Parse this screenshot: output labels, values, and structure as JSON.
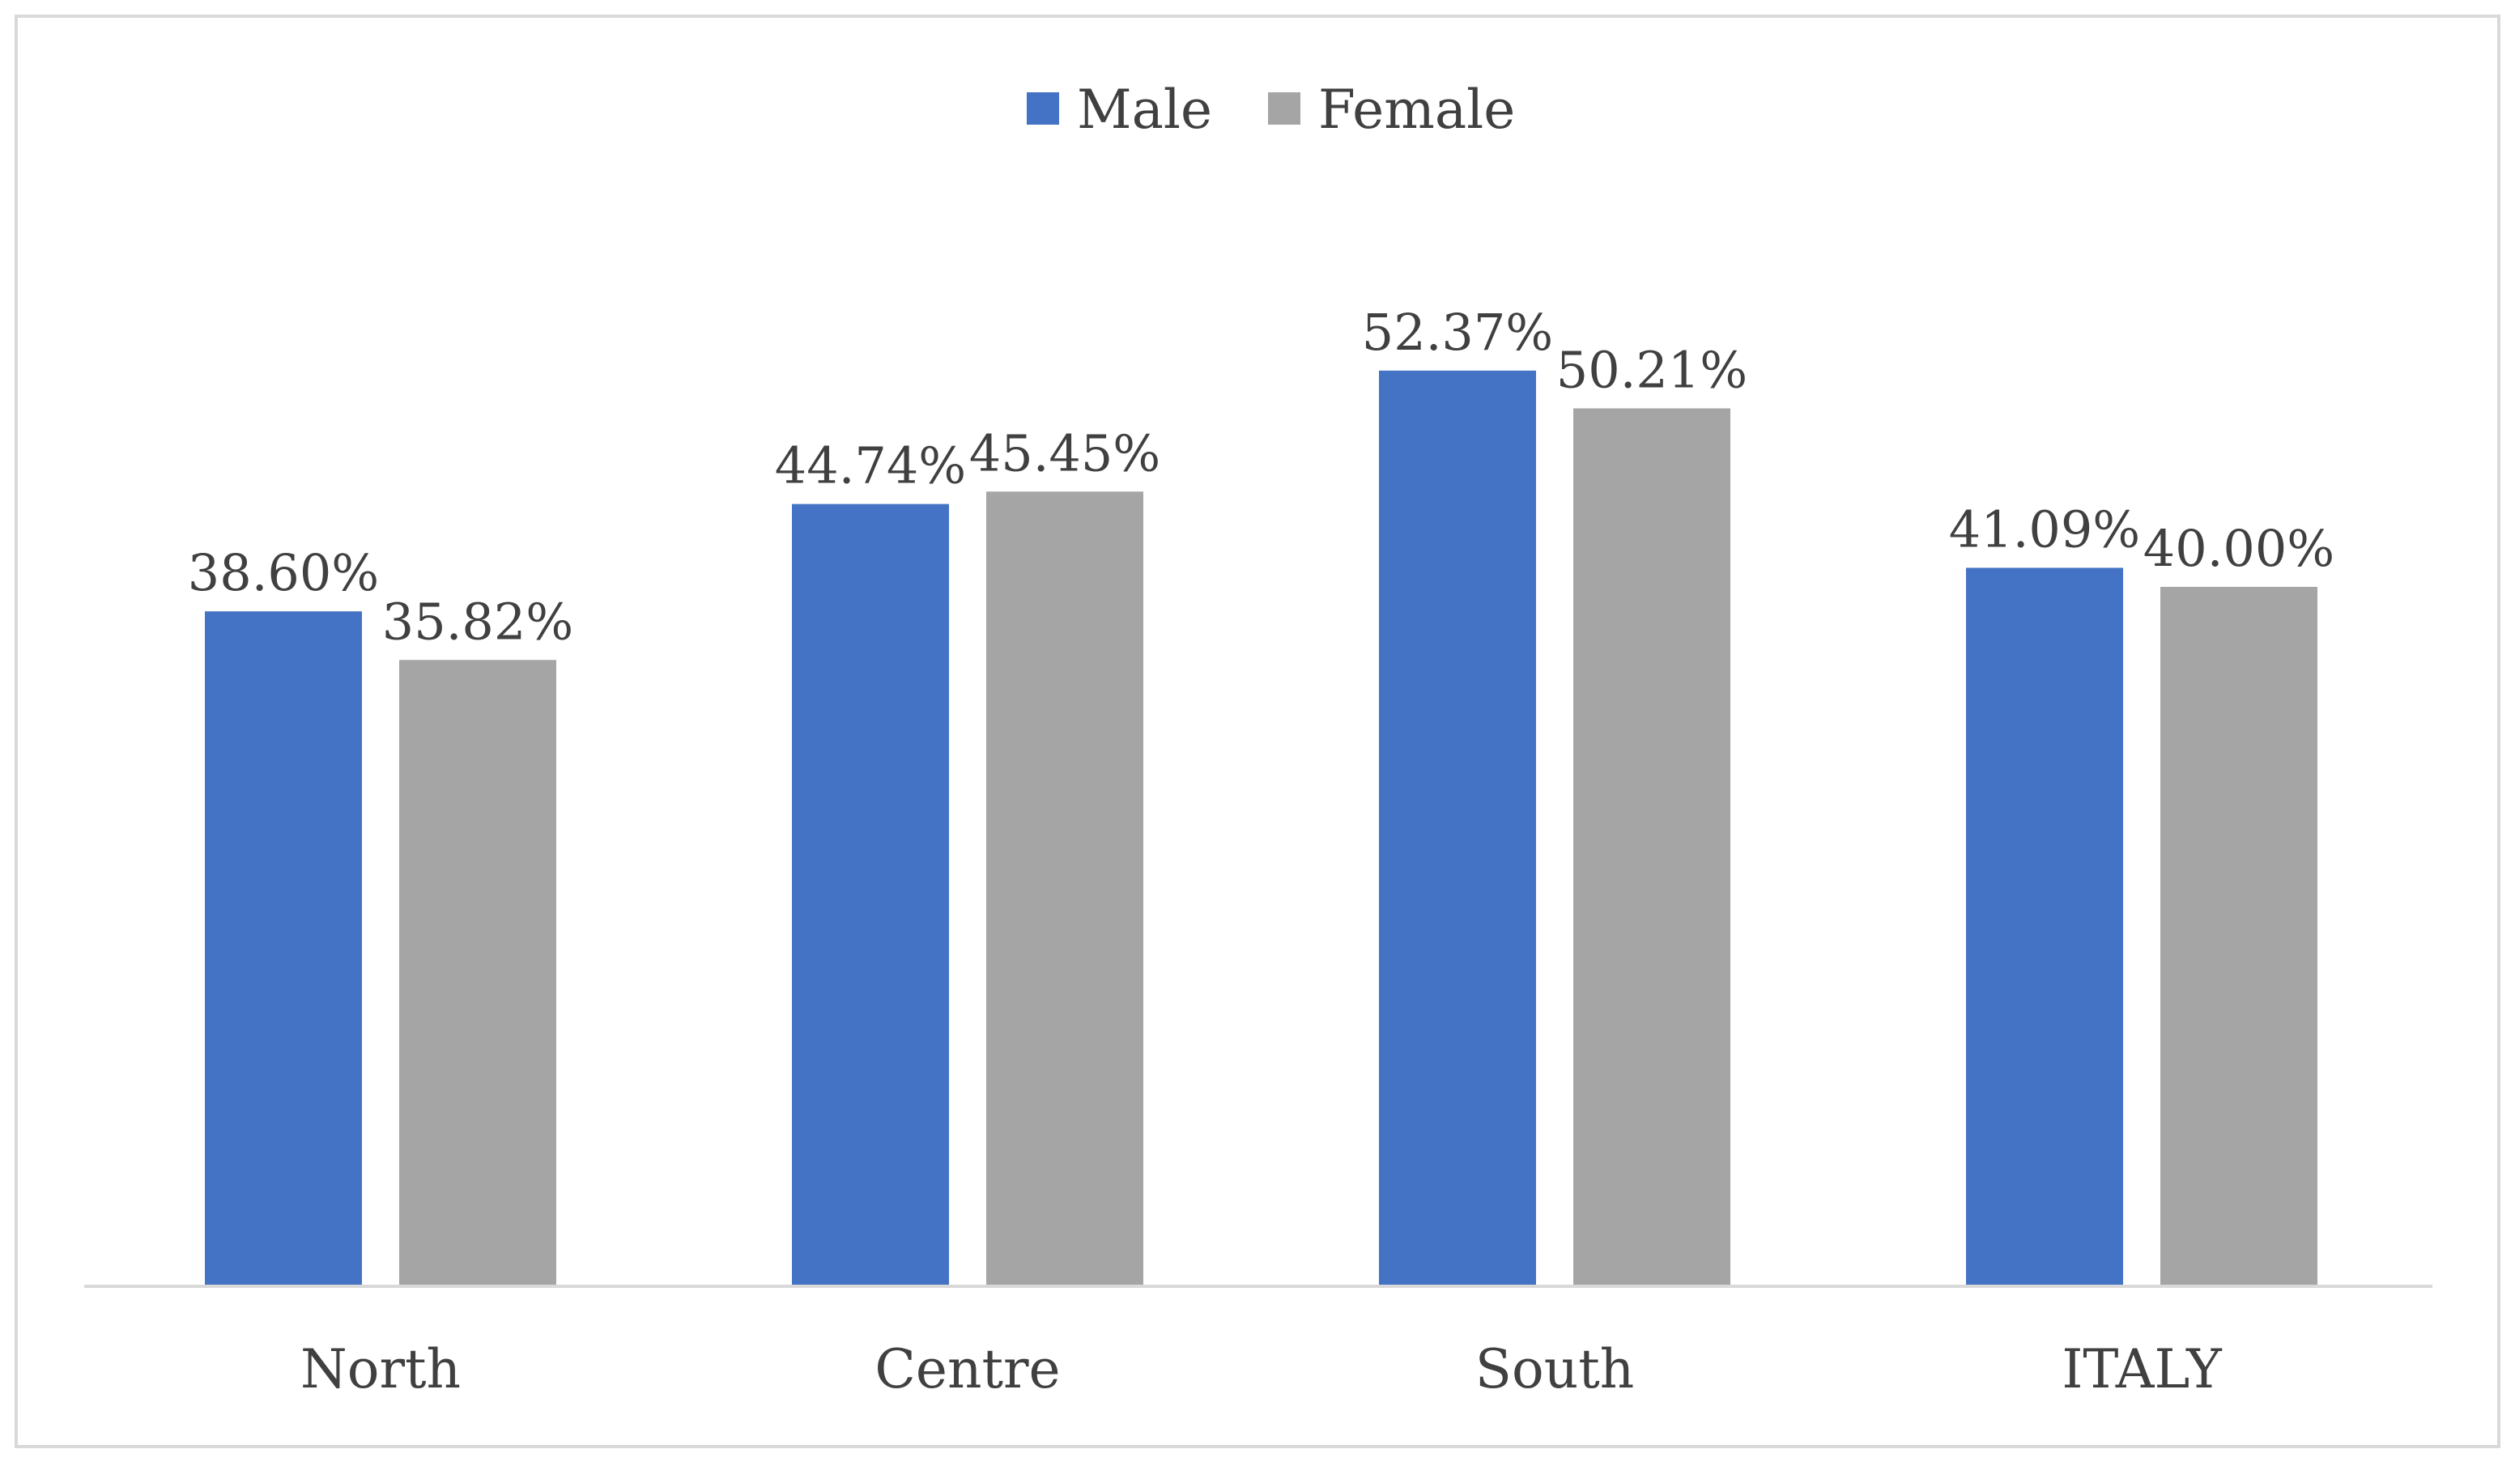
{
  "chart_data": {
    "type": "bar",
    "title": "",
    "xlabel": "",
    "ylabel": "",
    "ylim": [
      0,
      60
    ],
    "grid": false,
    "legend_position": "top-center",
    "categories": [
      "North",
      "Centre",
      "South",
      "ITALY"
    ],
    "series": [
      {
        "name": "Male",
        "color": "#4472C4",
        "values": [
          38.6,
          44.74,
          52.37,
          41.09
        ],
        "labels": [
          "38.60%",
          "44.74%",
          "52.37%",
          "41.09%"
        ]
      },
      {
        "name": "Female",
        "color": "#A5A5A5",
        "values": [
          35.82,
          45.45,
          50.21,
          40.0
        ],
        "labels": [
          "35.82%",
          "45.45%",
          "50.21%",
          "40.00%"
        ]
      }
    ],
    "colors": {
      "axis": "#D9D9D9",
      "border": "#D9D9D9",
      "text": "#404040"
    }
  }
}
